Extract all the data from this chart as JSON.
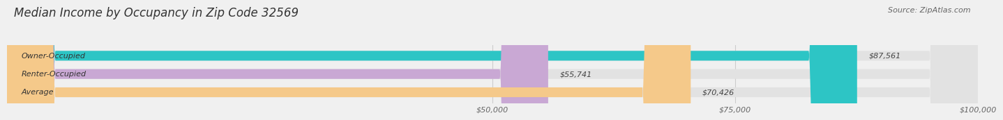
{
  "title": "Median Income by Occupancy in Zip Code 32569",
  "source": "Source: ZipAtlas.com",
  "categories": [
    "Owner-Occupied",
    "Renter-Occupied",
    "Average"
  ],
  "values": [
    87561,
    55741,
    70426
  ],
  "bar_colors": [
    "#2dc5c5",
    "#c9a8d4",
    "#f5c98a"
  ],
  "bar_labels": [
    "$87,561",
    "$55,741",
    "$70,426"
  ],
  "xlim": [
    0,
    100000
  ],
  "xticks": [
    50000,
    75000,
    100000
  ],
  "xtick_labels": [
    "$50,000",
    "$75,000",
    "$100,000"
  ],
  "background_color": "#f0f0f0",
  "bar_bg_color": "#e2e2e2",
  "title_fontsize": 12,
  "source_fontsize": 8,
  "label_fontsize": 8,
  "tick_fontsize": 8,
  "bar_height": 0.52
}
